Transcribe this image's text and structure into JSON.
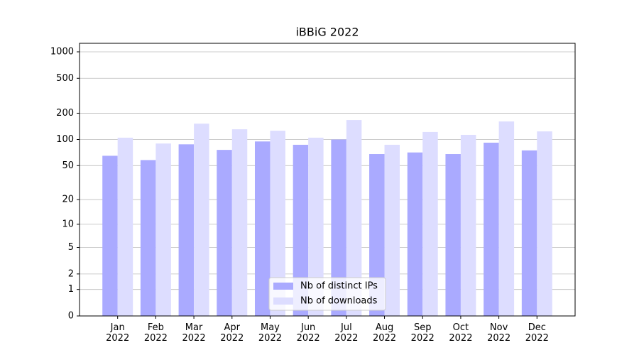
{
  "chart_data": {
    "type": "bar",
    "title": "iBBiG 2022",
    "categories": [
      "Jan 2022",
      "Feb 2022",
      "Mar 2022",
      "Apr 2022",
      "May 2022",
      "Jun 2022",
      "Jul 2022",
      "Aug 2022",
      "Sep 2022",
      "Oct 2022",
      "Nov 2022",
      "Dec 2022"
    ],
    "series": [
      {
        "name": "Nb of distinct IPs",
        "color": "#aaaaff",
        "values": [
          65,
          58,
          88,
          76,
          95,
          87,
          100,
          68,
          71,
          68,
          92,
          75
        ]
      },
      {
        "name": "Nb of downloads",
        "color": "#ddddff",
        "values": [
          105,
          90,
          152,
          131,
          126,
          105,
          167,
          87,
          122,
          113,
          161,
          124
        ]
      }
    ],
    "yscale": "log1p",
    "ylim": [
      0,
      1250
    ],
    "yticks": [
      0,
      1,
      2,
      5,
      10,
      20,
      50,
      100,
      200,
      500,
      1000
    ],
    "grid": true,
    "legend": "lower center"
  }
}
